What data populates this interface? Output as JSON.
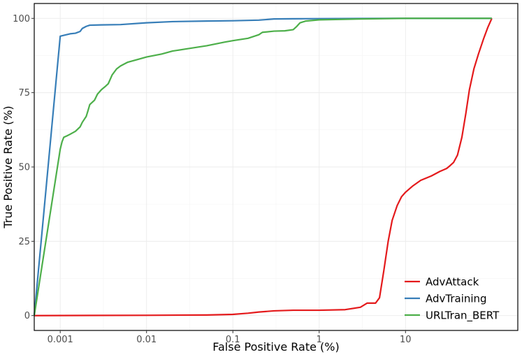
{
  "chart_data": {
    "type": "line",
    "xlabel": "False Positive Rate (%)",
    "ylabel": "True Positive Rate (%)",
    "x_scale": "log",
    "xlim": [
      0.0005,
      200
    ],
    "ylim": [
      -5,
      105
    ],
    "x_ticks": [
      {
        "value": 0.001,
        "label": "0.001"
      },
      {
        "value": 0.01,
        "label": "0.01"
      },
      {
        "value": 0.1,
        "label": "0.1"
      },
      {
        "value": 1,
        "label": "1"
      },
      {
        "value": 10,
        "label": "10"
      }
    ],
    "y_ticks": [
      {
        "value": 0,
        "label": "0"
      },
      {
        "value": 25,
        "label": "25"
      },
      {
        "value": 50,
        "label": "50"
      },
      {
        "value": 75,
        "label": "75"
      },
      {
        "value": 100,
        "label": "100"
      }
    ],
    "grid": true,
    "legend_position": "bottom-right",
    "series": [
      {
        "name": "AdvAttack",
        "color": "#e41a1c",
        "points": [
          [
            0.0005,
            0
          ],
          [
            0.01,
            0.1
          ],
          [
            0.05,
            0.2
          ],
          [
            0.1,
            0.4
          ],
          [
            0.15,
            0.8
          ],
          [
            0.2,
            1.2
          ],
          [
            0.3,
            1.6
          ],
          [
            0.5,
            1.8
          ],
          [
            1,
            1.8
          ],
          [
            2,
            2.0
          ],
          [
            3,
            2.8
          ],
          [
            3.6,
            4.2
          ],
          [
            4.5,
            4.2
          ],
          [
            5,
            6
          ],
          [
            5.6,
            15
          ],
          [
            6.3,
            25
          ],
          [
            7,
            32
          ],
          [
            8,
            37
          ],
          [
            9,
            40
          ],
          [
            10,
            41.5
          ],
          [
            12,
            43.5
          ],
          [
            15,
            45.5
          ],
          [
            20,
            47
          ],
          [
            25,
            48.5
          ],
          [
            30,
            49.5
          ],
          [
            33,
            50.5
          ],
          [
            36,
            51.5
          ],
          [
            40,
            54
          ],
          [
            45,
            60
          ],
          [
            50,
            68
          ],
          [
            55,
            76
          ],
          [
            62,
            83
          ],
          [
            70,
            88
          ],
          [
            80,
            93
          ],
          [
            90,
            97
          ],
          [
            100,
            100
          ]
        ]
      },
      {
        "name": "AdvTraining",
        "color": "#377eb8",
        "points": [
          [
            0.0005,
            0
          ],
          [
            0.001,
            94
          ],
          [
            0.0011,
            94.3
          ],
          [
            0.0013,
            94.8
          ],
          [
            0.0015,
            95
          ],
          [
            0.0017,
            95.6
          ],
          [
            0.0018,
            96.6
          ],
          [
            0.002,
            97.3
          ],
          [
            0.0022,
            97.7
          ],
          [
            0.003,
            97.8
          ],
          [
            0.005,
            97.9
          ],
          [
            0.01,
            98.5
          ],
          [
            0.02,
            98.9
          ],
          [
            0.05,
            99.1
          ],
          [
            0.1,
            99.2
          ],
          [
            0.2,
            99.4
          ],
          [
            0.3,
            99.8
          ],
          [
            0.5,
            99.85
          ],
          [
            1,
            99.9
          ],
          [
            10,
            100
          ],
          [
            100,
            100
          ]
        ]
      },
      {
        "name": "URLTran_BERT",
        "color": "#4daf4a",
        "points": [
          [
            0.0005,
            0
          ],
          [
            0.001,
            56
          ],
          [
            0.00105,
            58.5
          ],
          [
            0.0011,
            60
          ],
          [
            0.0012,
            60.5
          ],
          [
            0.0013,
            61
          ],
          [
            0.0015,
            62
          ],
          [
            0.0017,
            63.5
          ],
          [
            0.0018,
            65
          ],
          [
            0.002,
            67
          ],
          [
            0.0021,
            69
          ],
          [
            0.0022,
            71
          ],
          [
            0.0025,
            72.5
          ],
          [
            0.0027,
            74.5
          ],
          [
            0.003,
            76
          ],
          [
            0.0033,
            77
          ],
          [
            0.0036,
            78
          ],
          [
            0.004,
            81
          ],
          [
            0.0045,
            83
          ],
          [
            0.005,
            84
          ],
          [
            0.006,
            85.2
          ],
          [
            0.008,
            86.2
          ],
          [
            0.01,
            87
          ],
          [
            0.015,
            88
          ],
          [
            0.02,
            89
          ],
          [
            0.03,
            89.8
          ],
          [
            0.05,
            90.8
          ],
          [
            0.08,
            92
          ],
          [
            0.1,
            92.5
          ],
          [
            0.15,
            93.3
          ],
          [
            0.2,
            94.5
          ],
          [
            0.22,
            95.3
          ],
          [
            0.3,
            95.7
          ],
          [
            0.4,
            95.8
          ],
          [
            0.5,
            96.2
          ],
          [
            0.55,
            97.3
          ],
          [
            0.6,
            98.5
          ],
          [
            0.7,
            99.1
          ],
          [
            1,
            99.5
          ],
          [
            3,
            99.8
          ],
          [
            10,
            100
          ],
          [
            100,
            100
          ]
        ]
      }
    ]
  }
}
